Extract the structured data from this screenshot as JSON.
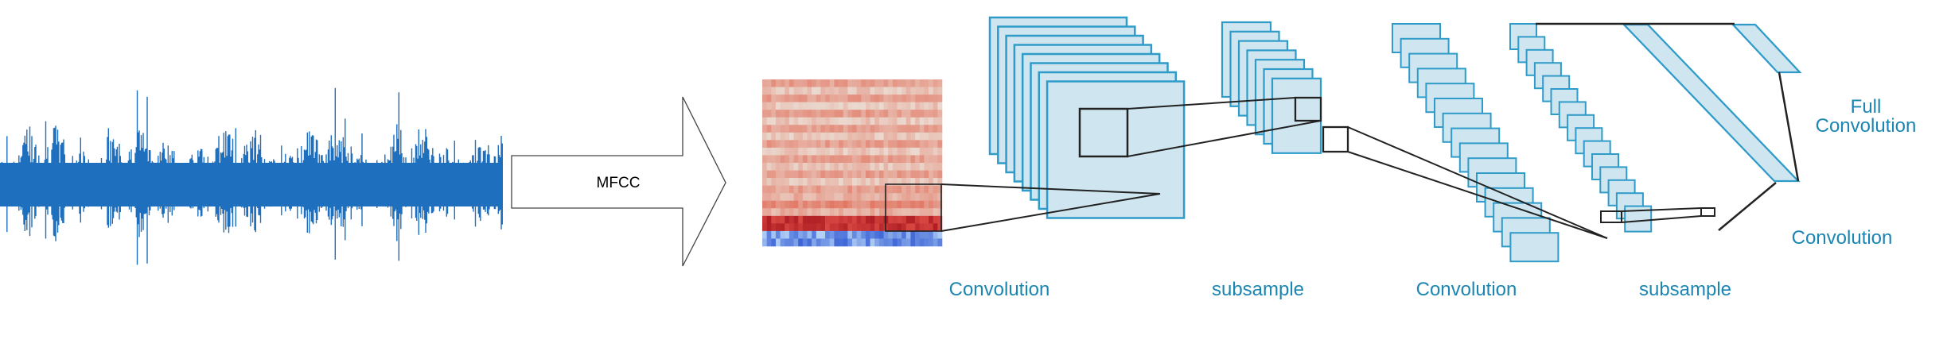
{
  "arrow": {
    "label": "MFCC"
  },
  "labels": {
    "conv1": "Convolution",
    "sub1": "subsample",
    "conv2": "Convolution",
    "sub2": "subsample",
    "conv3": "Convolution",
    "full_line1": "Full",
    "full_line2": "Convolution"
  },
  "colors": {
    "waveform": "#1f6fbf",
    "label_text": "#1c86b3",
    "box_fill": "#cfe6f0",
    "box_stroke": "#2f9bc9",
    "connector": "#222222",
    "mfcc_warm": "#e8977c",
    "mfcc_cool": "#3f6fdc"
  },
  "icons": {
    "waveform": "audio-waveform-icon",
    "arrow": "right-block-arrow-icon",
    "mfcc": "mfcc-heatmap-icon"
  }
}
